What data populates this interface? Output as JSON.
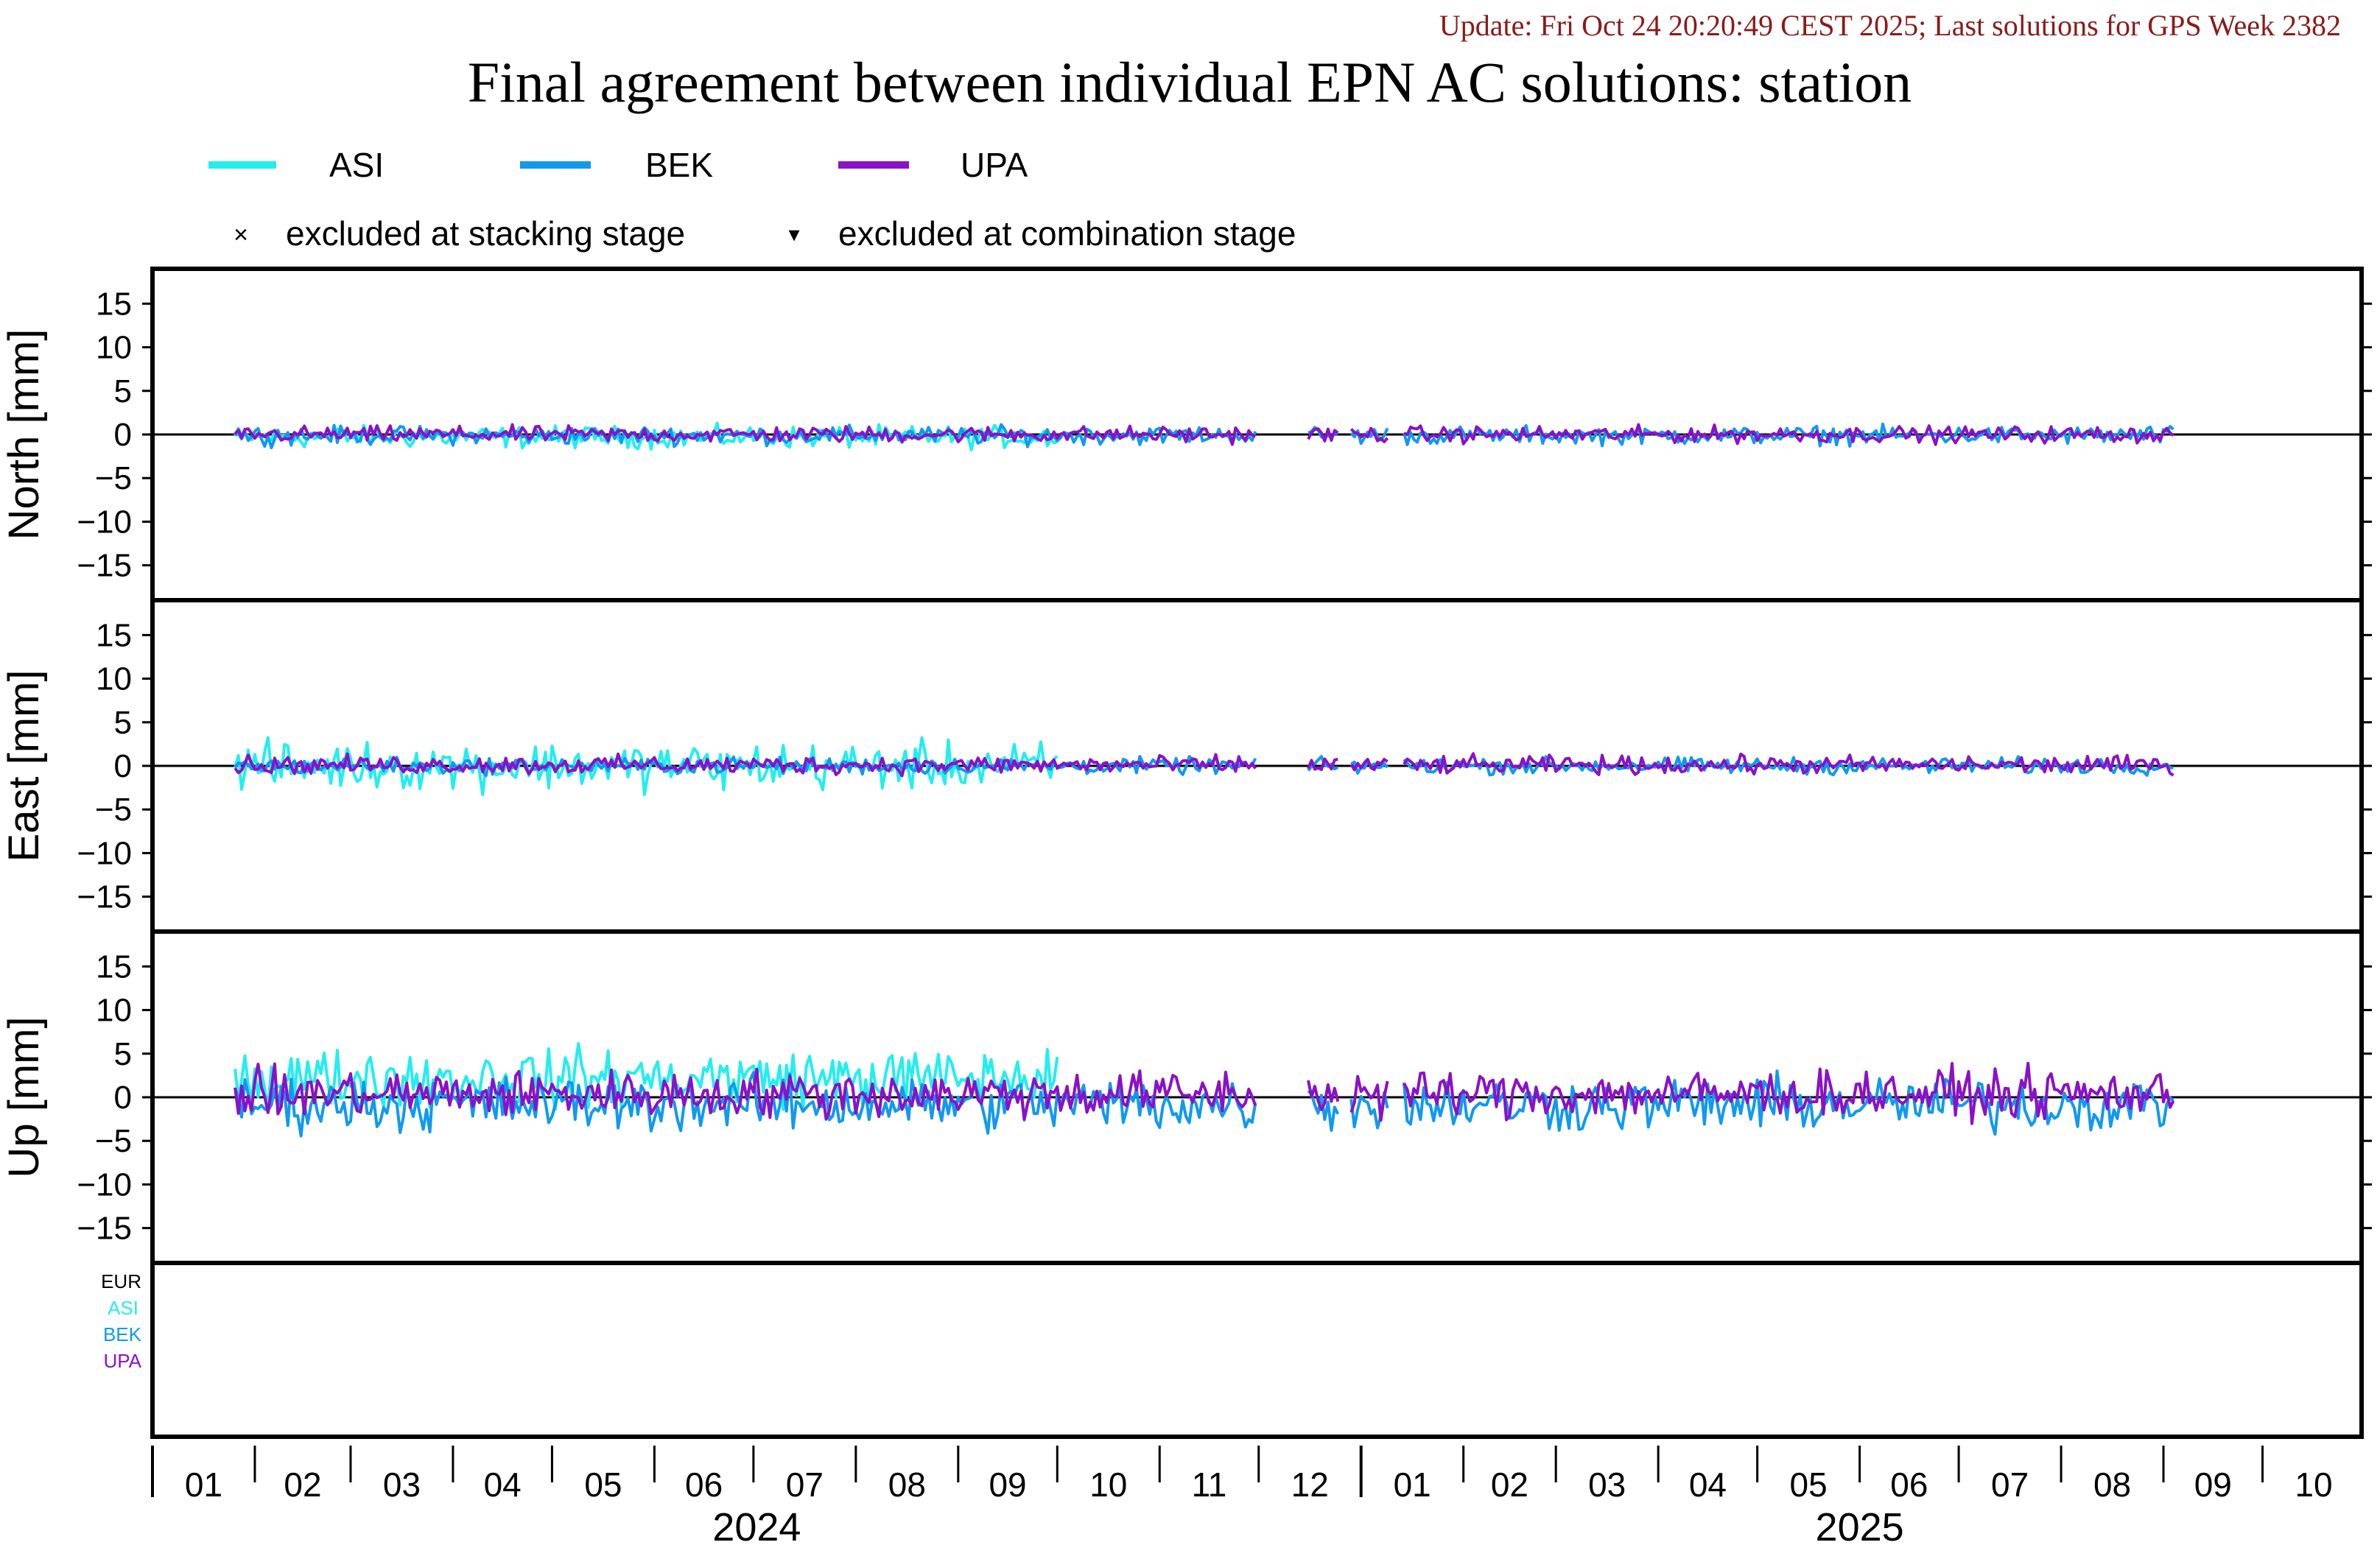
{
  "header": {
    "update_text": "Update: Fri Oct 24 20:20:49 CEST 2025; Last solutions for GPS Week 2382",
    "title": "Final agreement between individual EPN AC solutions: station"
  },
  "colors": {
    "ASI": "#22eeee",
    "BEK": "#1199ee",
    "UPA": "#8a11c8",
    "update": "#8b1a1a",
    "EUR": "#000000"
  },
  "legend": {
    "series": [
      "ASI",
      "BEK",
      "UPA"
    ],
    "excluded_stacking": "excluded at stacking stage",
    "excluded_combination": "excluded at combination stage",
    "marker_stacking": "×",
    "marker_combination": "▾"
  },
  "ac_list": [
    "EUR",
    "ASI",
    "BEK",
    "UPA"
  ],
  "chart_data": {
    "type": "line",
    "x_range": [
      "2024-01-01",
      "2025-10-31"
    ],
    "x_month_labels": [
      "01",
      "02",
      "03",
      "04",
      "05",
      "06",
      "07",
      "08",
      "09",
      "10",
      "11",
      "12",
      "01",
      "02",
      "03",
      "04",
      "05",
      "06",
      "07",
      "08",
      "09",
      "10"
    ],
    "x_year_labels": [
      "2024",
      "2025"
    ],
    "panels": [
      {
        "ylabel": "North [mm]",
        "ylim": [
          -19,
          19
        ],
        "yticks": [
          15,
          10,
          5,
          0,
          -5,
          -10,
          -15
        ],
        "series": [
          {
            "name": "ASI",
            "amplitude": 0.6,
            "offset": -0.3,
            "start": "2024-01-26",
            "end": "2024-10-01"
          },
          {
            "name": "BEK",
            "amplitude": 0.5,
            "offset": -0.1,
            "start": "2024-01-26",
            "end": "2025-09-04"
          },
          {
            "name": "UPA",
            "amplitude": 0.45,
            "offset": 0.0,
            "start": "2024-01-26",
            "end": "2025-09-04"
          }
        ]
      },
      {
        "ylabel": "East [mm]",
        "ylim": [
          -19,
          19
        ],
        "yticks": [
          15,
          10,
          5,
          0,
          -5,
          -10,
          -15
        ],
        "series": [
          {
            "name": "ASI",
            "amplitude": 1.3,
            "offset": 0.0,
            "start": "2024-01-26",
            "end": "2024-10-01"
          },
          {
            "name": "BEK",
            "amplitude": 0.45,
            "offset": 0.0,
            "start": "2024-01-26",
            "end": "2025-09-04"
          },
          {
            "name": "UPA",
            "amplitude": 0.5,
            "offset": 0.1,
            "start": "2024-01-26",
            "end": "2025-09-04"
          }
        ]
      },
      {
        "ylabel": "Up [mm]",
        "ylim": [
          -19,
          19
        ],
        "yticks": [
          15,
          10,
          5,
          0,
          -5,
          -10,
          -15
        ],
        "series": [
          {
            "name": "ASI",
            "amplitude": 1.6,
            "offset": 2.2,
            "start": "2024-01-26",
            "end": "2024-10-01"
          },
          {
            "name": "BEK",
            "amplitude": 1.5,
            "offset": -0.8,
            "start": "2024-01-26",
            "end": "2025-09-04"
          },
          {
            "name": "UPA",
            "amplitude": 1.3,
            "offset": 0.4,
            "start": "2024-01-26",
            "end": "2025-09-04"
          }
        ]
      }
    ],
    "gaps": [
      [
        "2024-12-01",
        "2024-12-15"
      ],
      [
        "2024-12-26",
        "2024-12-28"
      ],
      [
        "2025-01-10",
        "2025-01-13"
      ]
    ],
    "grid": false
  }
}
